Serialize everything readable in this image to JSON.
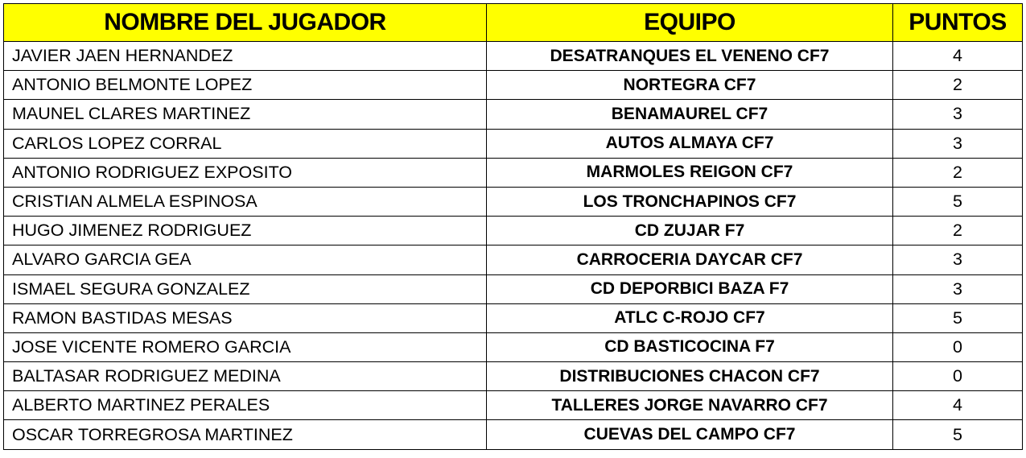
{
  "header": {
    "player": "NOMBRE DEL JUGADOR",
    "team": "EQUIPO",
    "points": "PUNTOS"
  },
  "header_color": "#ffff00",
  "rows": [
    {
      "player": "JAVIER JAEN HERNANDEZ",
      "team": "DESATRANQUES EL VENENO CF7",
      "points": "4"
    },
    {
      "player": "ANTONIO BELMONTE LOPEZ",
      "team": "NORTEGRA CF7",
      "points": "2"
    },
    {
      "player": "MAUNEL CLARES MARTINEZ",
      "team": "BENAMAUREL CF7",
      "points": "3"
    },
    {
      "player": "CARLOS LOPEZ CORRAL",
      "team": "AUTOS ALMAYA CF7",
      "points": "3"
    },
    {
      "player": "ANTONIO RODRIGUEZ EXPOSITO",
      "team": "MARMOLES REIGON CF7",
      "points": "2"
    },
    {
      "player": "CRISTIAN ALMELA ESPINOSA",
      "team": "LOS TRONCHAPINOS CF7",
      "points": "5"
    },
    {
      "player": "HUGO JIMENEZ RODRIGUEZ",
      "team": "CD ZUJAR F7",
      "points": "2"
    },
    {
      "player": "ALVARO GARCIA GEA",
      "team": "CARROCERIA DAYCAR CF7",
      "points": "3"
    },
    {
      "player": "ISMAEL SEGURA GONZALEZ",
      "team": "CD DEPORBICI BAZA F7",
      "points": "3"
    },
    {
      "player": "RAMON BASTIDAS MESAS",
      "team": "ATLC C-ROJO CF7",
      "points": "5"
    },
    {
      "player": "JOSE VICENTE ROMERO GARCIA",
      "team": "CD BASTICOCINA F7",
      "points": "0"
    },
    {
      "player": "BALTASAR RODRIGUEZ MEDINA",
      "team": "DISTRIBUCIONES CHACON CF7",
      "points": "0"
    },
    {
      "player": "ALBERTO MARTINEZ PERALES",
      "team": "TALLERES JORGE NAVARRO CF7",
      "points": "4"
    },
    {
      "player": "OSCAR TORREGROSA MARTINEZ",
      "team": "CUEVAS DEL CAMPO CF7",
      "points": "5"
    }
  ]
}
